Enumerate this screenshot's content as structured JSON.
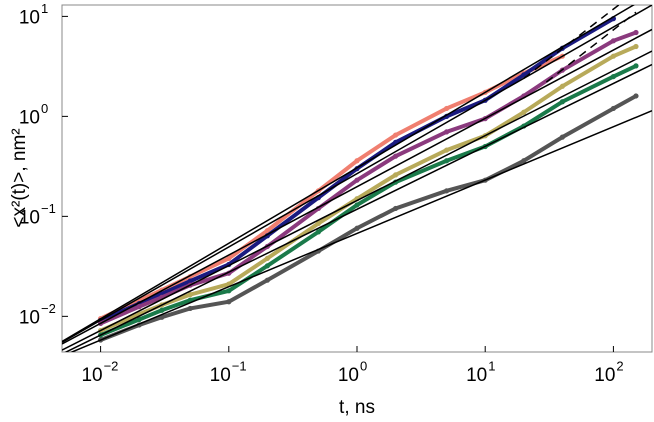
{
  "chart_data": {
    "type": "scatter",
    "xlabel": "t, ns",
    "ylabel": "<x²(t)>, nm²",
    "xscale": "log",
    "yscale": "log",
    "xlim": [
      0.005,
      200
    ],
    "ylim": [
      0.0044,
      13
    ],
    "xticks": [
      {
        "value": 0.01,
        "label": "10",
        "exponent": "−2"
      },
      {
        "value": 0.1,
        "label": "10",
        "exponent": "−1"
      },
      {
        "value": 1,
        "label": "10",
        "exponent": "0"
      },
      {
        "value": 10,
        "label": "10",
        "exponent": "1"
      },
      {
        "value": 100,
        "label": "10",
        "exponent": "2"
      }
    ],
    "yticks": [
      {
        "value": 0.01,
        "label": "10",
        "exponent": "−2"
      },
      {
        "value": 0.1,
        "label": "10",
        "exponent": "−1"
      },
      {
        "value": 1,
        "label": "10",
        "exponent": "0"
      },
      {
        "value": 10,
        "label": "10",
        "exponent": "1"
      }
    ],
    "x": [
      0.01,
      0.02,
      0.03,
      0.05,
      0.1,
      0.2,
      0.5,
      1,
      2,
      5,
      10,
      20,
      40,
      100,
      150
    ],
    "series": [
      {
        "color": "#f07f70",
        "values": [
          0.0095,
          0.0144,
          0.0183,
          0.025,
          0.038,
          0.072,
          0.18,
          0.36,
          0.65,
          1.2,
          1.74,
          2.7,
          4,
          null,
          null
        ]
      },
      {
        "color": "#1a1a80",
        "values": [
          0.0091,
          0.0134,
          0.0168,
          0.0225,
          0.033,
          0.064,
          0.154,
          0.3,
          0.55,
          1.0,
          1.45,
          2.6,
          4.8,
          9.5,
          null
        ]
      },
      {
        "color": "#8b3a7e",
        "values": [
          0.0085,
          0.0125,
          0.0155,
          0.0205,
          0.027,
          0.05,
          0.12,
          0.23,
          0.4,
          0.7,
          0.95,
          1.6,
          2.9,
          5.7,
          6.9
        ]
      },
      {
        "color": "#b8aa5a",
        "values": [
          0.0072,
          0.0105,
          0.013,
          0.0165,
          0.021,
          0.038,
          0.085,
          0.15,
          0.26,
          0.46,
          0.64,
          1.1,
          2.0,
          4.0,
          5.0
        ]
      },
      {
        "color": "#1a7a4a",
        "values": [
          0.0065,
          0.0093,
          0.0115,
          0.0145,
          0.018,
          0.032,
          0.07,
          0.13,
          0.22,
          0.36,
          0.5,
          0.8,
          1.4,
          2.5,
          3.2
        ]
      },
      {
        "color": "#555555",
        "values": [
          0.0058,
          0.0082,
          0.0098,
          0.012,
          0.014,
          0.023,
          0.045,
          0.076,
          0.12,
          0.18,
          0.23,
          0.36,
          0.62,
          1.2,
          1.6
        ]
      }
    ],
    "fit_lines": [
      {
        "x": [
          0.005,
          200
        ],
        "values": [
          0.0056,
          16.7
        ]
      },
      {
        "x": [
          0.005,
          200
        ],
        "values": [
          0.0055,
          13.0
        ]
      },
      {
        "x": [
          0.005,
          200
        ],
        "values": [
          0.0053,
          7.4
        ]
      },
      {
        "x": [
          0.005,
          200
        ],
        "values": [
          0.0046,
          4.5
        ]
      },
      {
        "x": [
          0.005,
          200
        ],
        "values": [
          0.0042,
          3.3
        ]
      },
      {
        "x": [
          0.005,
          200
        ],
        "values": [
          0.004,
          1.14
        ]
      },
      {
        "x": [
          20,
          110
        ],
        "values": [
          2.4,
          13
        ],
        "dashed": true
      },
      {
        "x": [
          30,
          150
        ],
        "values": [
          2.2,
          11
        ],
        "dashed": true
      }
    ],
    "fit_color": "#000000"
  }
}
